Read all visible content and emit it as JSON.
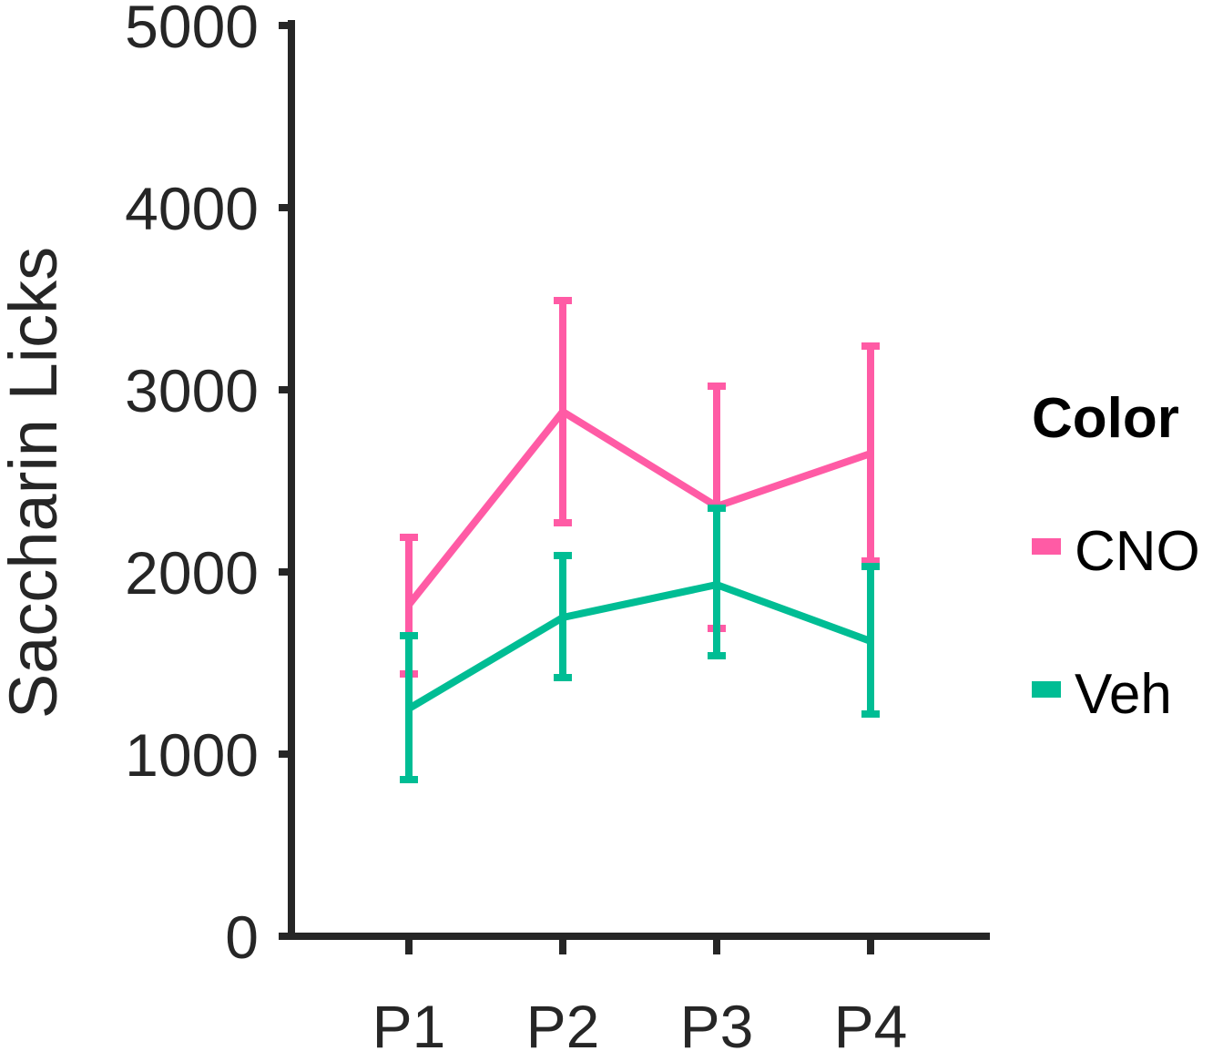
{
  "chart_data": {
    "type": "line",
    "title": "",
    "xlabel": "",
    "ylabel": "Saccharin Licks",
    "categories": [
      "P1",
      "P2",
      "P3",
      "P4"
    ],
    "yticks": [
      "0",
      "1000",
      "2000",
      "3000",
      "4000",
      "5000"
    ],
    "ylim": [
      0,
      5000
    ],
    "grid": false,
    "legend": {
      "title": "Color",
      "placement": "right"
    },
    "series": [
      {
        "name": "CNO",
        "color": "#ff5ba5",
        "values": [
          1820,
          2880,
          2360,
          2650
        ],
        "error_low": [
          1440,
          2270,
          1690,
          2060
        ],
        "error_high": [
          2190,
          3490,
          3020,
          3240
        ]
      },
      {
        "name": "Veh",
        "color": "#00bd94",
        "values": [
          1250,
          1750,
          1930,
          1620
        ],
        "error_low": [
          860,
          1420,
          1540,
          1220
        ],
        "error_high": [
          1650,
          2090,
          2350,
          2030
        ]
      }
    ]
  }
}
